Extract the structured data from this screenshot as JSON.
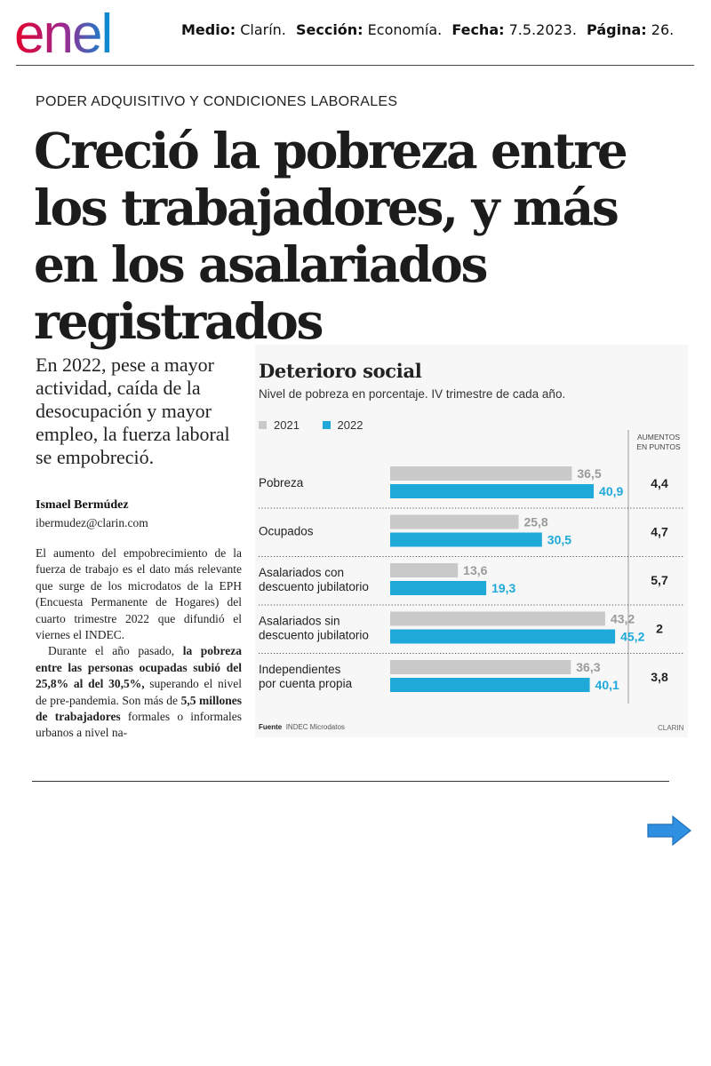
{
  "logo": {
    "text": "enel"
  },
  "press": {
    "medio_label": "Medio:",
    "medio": "Clarín.",
    "seccion_label": "Sección:",
    "seccion": "Economía.",
    "fecha_label": "Fecha:",
    "fecha": "7.5.2023.",
    "pagina_label": "Página:",
    "pagina": "26."
  },
  "article": {
    "kicker": "PODER ADQUISITIVO Y CONDICIONES LABORALES",
    "headline": "Creció la pobreza entre los trabajadores, y más en los asalariados registrados",
    "lead": "En 2022, pese a  mayor actividad, caída de la desocupación y mayor empleo, la fuerza laboral se empobreció.",
    "author": "Ismael Bermúdez",
    "email": "ibermudez@clarin.com",
    "p1": "El aumento del empobrecimiento de la fuerza de trabajo es el dato más relevante que surge de los microdatos de la EPH (Encuesta Permanente de Hogares) del cuarto trimestre 2022 que difundió el viernes el INDEC.",
    "p2_a": "Durante el año pasado, ",
    "p2_b": "la pobreza entre las personas ocupadas subió del 25,8% al del 30,5%,",
    "p2_c": " superando el nivel de pre-pandemia. Son más de ",
    "p2_d": "5,5 millones de trabajadores",
    "p2_e": " formales o informales urbanos a nivel na-"
  },
  "graphic": {
    "title": "Deterioro social",
    "subtitle": "Nivel de pobreza en porcentaje. IV trimestre de cada año.",
    "increase_header_line1": "AUMENTOS",
    "increase_header_line2": "EN PUNTOS",
    "source_label": "Fuente",
    "source": "INDEC Microdatos",
    "credit": "CLARIN"
  },
  "chart_data": {
    "type": "bar",
    "orientation": "horizontal",
    "title": "Deterioro social",
    "subtitle": "Nivel de pobreza en porcentaje. IV trimestre de cada año.",
    "categories": [
      [
        "Pobreza"
      ],
      [
        "Ocupados"
      ],
      [
        "Asalariados con",
        "descuento jubilatorio"
      ],
      [
        "Asalariados sin",
        "descuento jubilatorio"
      ],
      [
        "Independientes",
        "por cuenta propia"
      ]
    ],
    "series": [
      {
        "name": "2021",
        "color": "#c9c9c9",
        "values": [
          36.5,
          25.8,
          13.6,
          43.2,
          36.3
        ],
        "labels": [
          "36,5",
          "25,8",
          "13,6",
          "43,2",
          "36,3"
        ]
      },
      {
        "name": "2022",
        "color": "#1ea9d9",
        "values": [
          40.9,
          30.5,
          19.3,
          45.2,
          40.1
        ],
        "labels": [
          "40,9",
          "30,5",
          "19,3",
          "45,2",
          "40,1"
        ]
      }
    ],
    "increase_points": [
      "4,4",
      "4,7",
      "5,7",
      "2",
      "3,8"
    ],
    "xlim": [
      0,
      50
    ],
    "legend": "top-left"
  },
  "colors": {
    "enel_grad_start": "#e4002b",
    "enel_grad_mid": "#a1268e",
    "enel_grad_end": "#0091d5",
    "accent_blue": "#1ea9d9",
    "gray_bar": "#c9c9c9",
    "arrow_blue": "#2f8fe0"
  }
}
